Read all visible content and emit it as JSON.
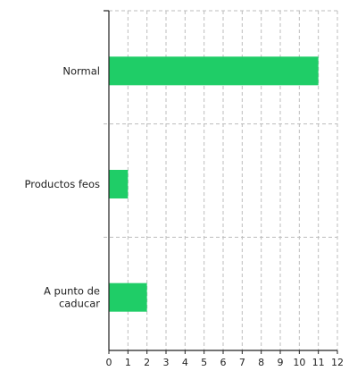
{
  "chart_data": {
    "type": "bar",
    "orientation": "horizontal",
    "title": "",
    "xlabel": "",
    "ylabel": "",
    "categories": [
      [
        "Normal"
      ],
      [
        "Productos feos"
      ],
      [
        "A punto de",
        "caducar"
      ]
    ],
    "values": [
      11,
      1,
      2
    ],
    "xlim": [
      0,
      12
    ],
    "xticks": [
      0,
      1,
      2,
      3,
      4,
      5,
      6,
      7,
      8,
      9,
      10,
      11,
      12
    ],
    "grid": true,
    "legend": "none",
    "colors": {
      "bar": "#1fcd67",
      "axis": "#222222",
      "grid": "#bdbdbd",
      "text": "#1e1e1e"
    }
  }
}
